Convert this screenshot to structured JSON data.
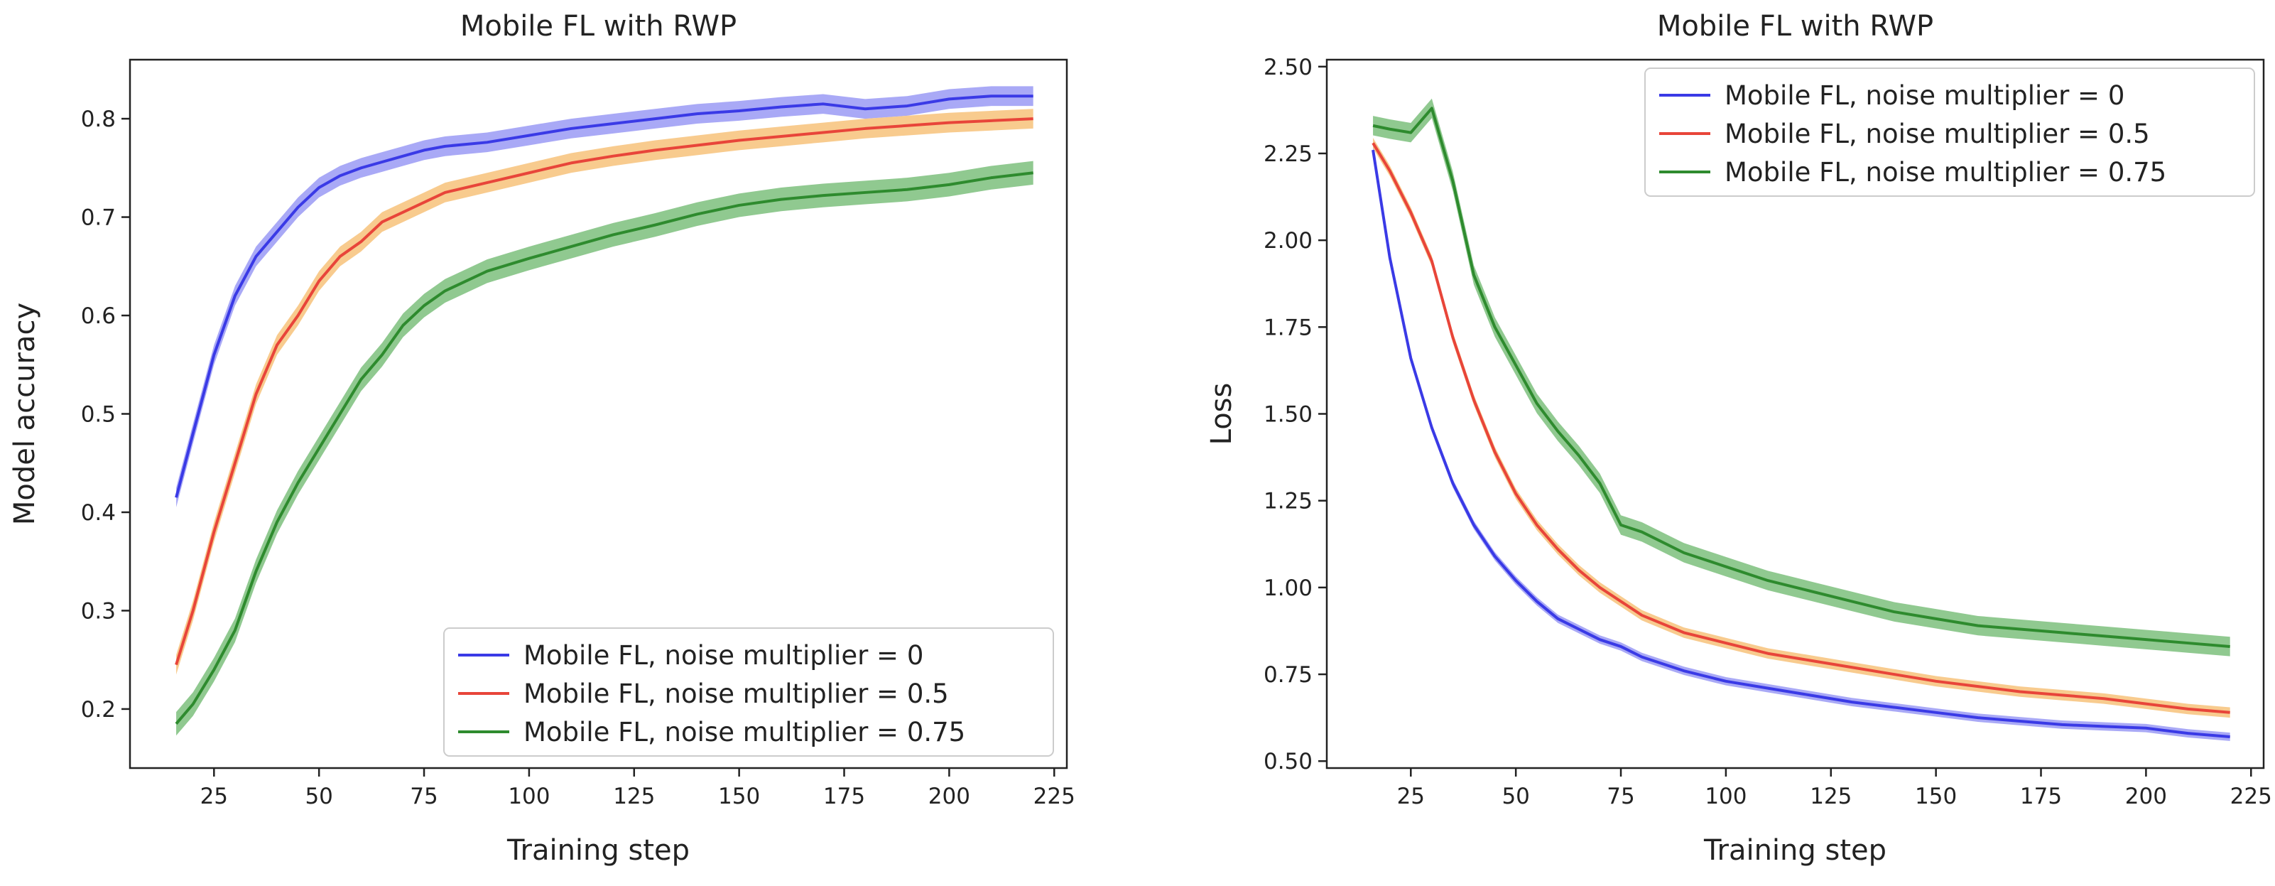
{
  "chart_data": [
    {
      "type": "line",
      "title": "Mobile FL with RWP",
      "xlabel": "Training step",
      "ylabel": "Model accuracy",
      "xlim": [
        5,
        228
      ],
      "ylim": [
        0.14,
        0.86
      ],
      "xticks": [
        25,
        50,
        75,
        100,
        125,
        150,
        175,
        200,
        225
      ],
      "yticks": [
        0.2,
        0.3,
        0.4,
        0.5,
        0.6,
        0.7,
        0.8
      ],
      "ytick_labels": [
        "0.2",
        "0.3",
        "0.4",
        "0.5",
        "0.6",
        "0.7",
        "0.8"
      ],
      "legend_position": "lower-right",
      "x": [
        16,
        20,
        25,
        30,
        35,
        40,
        45,
        50,
        55,
        60,
        65,
        70,
        75,
        80,
        90,
        100,
        110,
        120,
        130,
        140,
        150,
        160,
        170,
        180,
        190,
        200,
        210,
        220
      ],
      "series": [
        {
          "name": "Mobile FL, noise multiplier = 0",
          "color": "#3a3ae6",
          "band_color": "#9a9af5",
          "values": [
            0.415,
            0.48,
            0.56,
            0.62,
            0.66,
            0.685,
            0.71,
            0.73,
            0.742,
            0.75,
            0.756,
            0.762,
            0.768,
            0.772,
            0.776,
            0.783,
            0.79,
            0.795,
            0.8,
            0.805,
            0.808,
            0.812,
            0.815,
            0.81,
            0.813,
            0.82,
            0.823,
            0.823
          ],
          "band": 0.01
        },
        {
          "name": "Mobile FL, noise multiplier = 0.5",
          "color": "#e8453a",
          "band_color": "#f7c27a",
          "values": [
            0.245,
            0.3,
            0.38,
            0.45,
            0.52,
            0.57,
            0.6,
            0.635,
            0.66,
            0.675,
            0.695,
            0.705,
            0.715,
            0.725,
            0.735,
            0.745,
            0.755,
            0.762,
            0.768,
            0.773,
            0.778,
            0.782,
            0.786,
            0.79,
            0.793,
            0.796,
            0.798,
            0.8
          ],
          "band": 0.01
        },
        {
          "name": "Mobile FL, noise multiplier = 0.75",
          "color": "#2e8b2e",
          "band_color": "#7dbf7d",
          "values": [
            0.185,
            0.205,
            0.24,
            0.28,
            0.34,
            0.39,
            0.43,
            0.465,
            0.5,
            0.535,
            0.56,
            0.59,
            0.61,
            0.625,
            0.645,
            0.658,
            0.67,
            0.682,
            0.692,
            0.703,
            0.712,
            0.718,
            0.722,
            0.725,
            0.728,
            0.733,
            0.74,
            0.745
          ],
          "band": 0.012
        }
      ]
    },
    {
      "type": "line",
      "title": "Mobile FL with RWP",
      "xlabel": "Training step",
      "ylabel": "Loss",
      "xlim": [
        5,
        228
      ],
      "ylim": [
        0.48,
        2.52
      ],
      "xticks": [
        25,
        50,
        75,
        100,
        125,
        150,
        175,
        200,
        225
      ],
      "yticks": [
        0.5,
        0.75,
        1.0,
        1.25,
        1.5,
        1.75,
        2.0,
        2.25,
        2.5
      ],
      "ytick_labels": [
        "0.50",
        "0.75",
        "1.00",
        "1.25",
        "1.50",
        "1.75",
        "2.00",
        "2.25",
        "2.50"
      ],
      "legend_position": "upper-right",
      "x": [
        16,
        20,
        25,
        30,
        35,
        40,
        45,
        50,
        55,
        60,
        65,
        70,
        75,
        80,
        90,
        100,
        110,
        120,
        130,
        140,
        150,
        160,
        170,
        180,
        190,
        200,
        210,
        220
      ],
      "series": [
        {
          "name": "Mobile FL, noise multiplier = 0",
          "color": "#3a3ae6",
          "band_color": "#9a9af5",
          "values": [
            2.26,
            1.95,
            1.66,
            1.46,
            1.3,
            1.18,
            1.09,
            1.02,
            0.96,
            0.91,
            0.88,
            0.85,
            0.83,
            0.8,
            0.76,
            0.73,
            0.71,
            0.69,
            0.67,
            0.655,
            0.64,
            0.625,
            0.615,
            0.605,
            0.6,
            0.595,
            0.58,
            0.57
          ],
          "band": 0.012
        },
        {
          "name": "Mobile FL, noise multiplier = 0.5",
          "color": "#e8453a",
          "band_color": "#f7c27a",
          "values": [
            2.28,
            2.2,
            2.08,
            1.94,
            1.72,
            1.54,
            1.39,
            1.27,
            1.18,
            1.11,
            1.05,
            1.0,
            0.96,
            0.92,
            0.87,
            0.84,
            0.81,
            0.79,
            0.77,
            0.75,
            0.73,
            0.715,
            0.7,
            0.69,
            0.68,
            0.665,
            0.65,
            0.64
          ],
          "band": 0.015
        },
        {
          "name": "Mobile FL, noise multiplier = 0.75",
          "color": "#2e8b2e",
          "band_color": "#7dbf7d",
          "values": [
            2.33,
            2.32,
            2.31,
            2.38,
            2.17,
            1.9,
            1.75,
            1.64,
            1.53,
            1.45,
            1.38,
            1.3,
            1.18,
            1.16,
            1.1,
            1.06,
            1.02,
            0.99,
            0.96,
            0.93,
            0.91,
            0.89,
            0.88,
            0.87,
            0.86,
            0.85,
            0.84,
            0.83
          ],
          "band": 0.028
        }
      ]
    }
  ]
}
